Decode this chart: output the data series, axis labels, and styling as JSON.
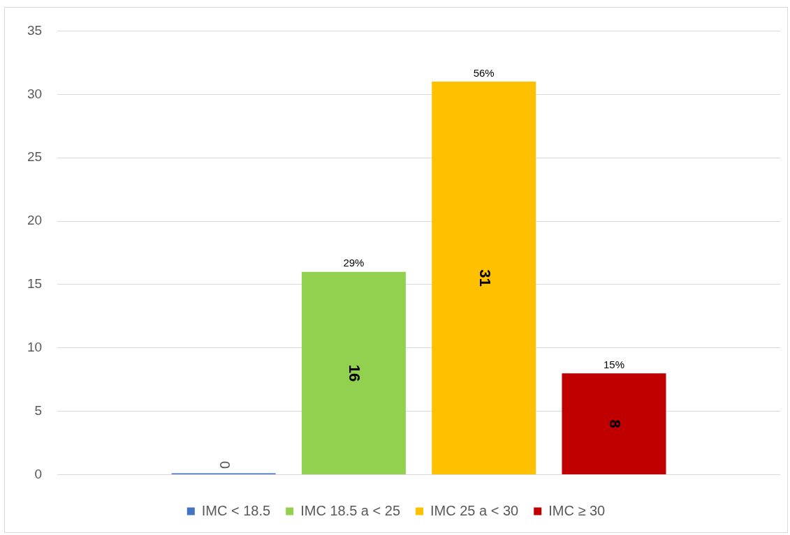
{
  "chart_data": {
    "type": "bar",
    "categories": [
      null
    ],
    "series": [
      {
        "name": "IMC < 18.5",
        "color": "#4472c4",
        "values": [
          0
        ],
        "value_labels": [
          "0"
        ]
      },
      {
        "name": "IMC 18.5 a < 25",
        "color": "#92d050",
        "values": [
          16
        ],
        "value_labels": [
          "16"
        ]
      },
      {
        "name": "IMC 25 a < 30",
        "color": "#ffc000",
        "values": [
          31
        ],
        "value_labels": [
          "31"
        ]
      },
      {
        "name": "IMC ≥ 30",
        "color": "#c00000",
        "values": [
          8
        ],
        "value_labels": [
          "8"
        ]
      }
    ],
    "annotations": [
      {
        "text": "29%",
        "y": 16
      },
      {
        "text": "56%",
        "y": 31
      },
      {
        "text": "15%",
        "y": 8
      }
    ],
    "ylim": [
      0,
      35
    ],
    "yticks": [
      0,
      5,
      10,
      15,
      20,
      25,
      30,
      35
    ],
    "grid": "y",
    "legend": "bottom"
  }
}
